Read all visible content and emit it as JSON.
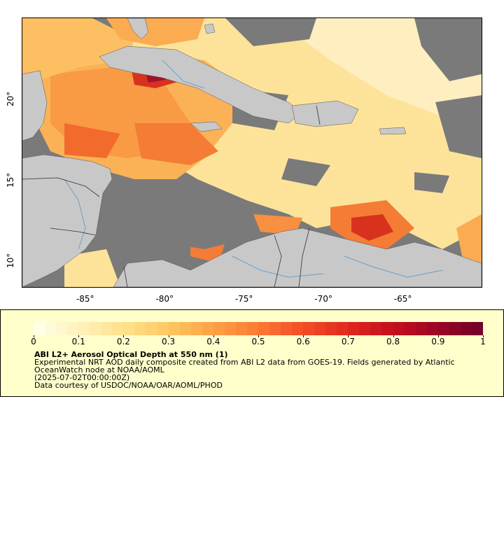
{
  "map": {
    "longitude_ticks": [
      {
        "value": -85,
        "label": "-85°"
      },
      {
        "value": -80,
        "label": "-80°"
      },
      {
        "value": -75,
        "label": "-75°"
      },
      {
        "value": -70,
        "label": "-70°"
      },
      {
        "value": -65,
        "label": "-65°"
      }
    ],
    "latitude_ticks": [
      {
        "value": 20,
        "label": "20°"
      },
      {
        "value": 15,
        "label": "15°"
      },
      {
        "value": 10,
        "label": "10°"
      }
    ],
    "lon_range": [
      -89,
      -60
    ],
    "lat_range": [
      8.2,
      24.9
    ],
    "colors": {
      "land": "#c8c8c8",
      "no_data": "#7a7a7a",
      "rivers": "#4a90c8",
      "borders": "#333333"
    }
  },
  "legend": {
    "title": "ABI L2+ Aerosol Optical Depth at 550 nm (1)",
    "description": "Experimental NRT AOD daily composite created from ABI L2 data from GOES-19. Fields generated by Atlantic OceanWatch node at NOAA/AOML",
    "date": "(2025-07-02T00:00:00Z)",
    "credit": "Data courtesy of USDOC/NOAA/OAR/AOML/PHOD",
    "scale_min": 0,
    "scale_max": 1,
    "tick_labels": [
      "0",
      "0.1",
      "0.2",
      "0.3",
      "0.4",
      "0.5",
      "0.6",
      "0.7",
      "0.8",
      "0.9",
      "1"
    ],
    "palette": [
      "#ffffe6",
      "#fff0b8",
      "#ffe08a",
      "#fec660",
      "#fda045",
      "#fc7a34",
      "#f44d26",
      "#e02a1e",
      "#c8101c",
      "#a00525",
      "#750029"
    ]
  }
}
